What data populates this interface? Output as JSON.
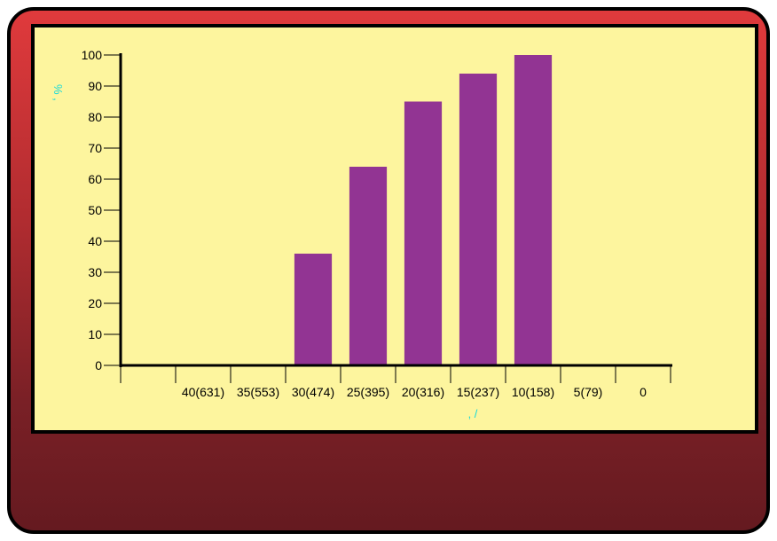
{
  "chart_data": {
    "type": "bar",
    "categories": [
      "",
      "40(631)",
      "35(553)",
      "30(474)",
      "25(395)",
      "20(316)",
      "15(237)",
      "10(158)",
      "5(79)",
      "0"
    ],
    "values": [
      null,
      null,
      null,
      36,
      64,
      85,
      94,
      100,
      null,
      null
    ],
    "ylim": [
      0,
      100
    ],
    "yticks": [
      0,
      10,
      20,
      30,
      40,
      50,
      60,
      70,
      80,
      90,
      100
    ],
    "ylabel": "% ,",
    "xlabel": ", /",
    "grid": false,
    "colors": {
      "bar": "#923493",
      "axis_title": "#16d9d9",
      "panel": "#fdf59e"
    }
  }
}
